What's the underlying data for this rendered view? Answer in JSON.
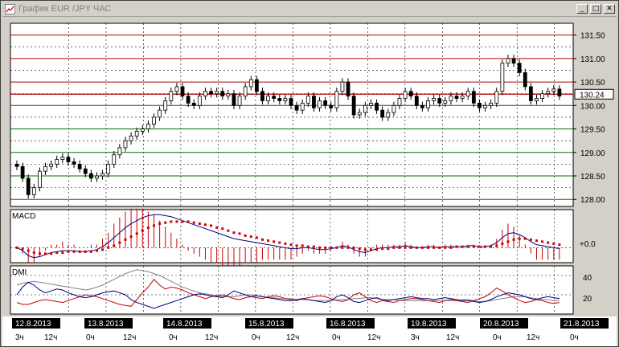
{
  "window": {
    "title": "График EUR /JPY  ЧАС",
    "btn_min": "_",
    "btn_max": "□",
    "btn_close": "✕"
  },
  "price_axis": {
    "ticks": [
      "131.50",
      "131.00",
      "130.50",
      "130.00",
      "129.50",
      "129.00",
      "128.50",
      "128.00"
    ],
    "current": "130.24"
  },
  "macd": {
    "label": "MACD",
    "zero_label": "+0.0"
  },
  "dmi": {
    "label": "DMI",
    "ticks": [
      "40",
      "20"
    ]
  },
  "time_axis": {
    "dates": [
      "12.8.2013",
      "13.8.2013",
      "14.8.2013",
      "15.8.2013",
      "16.8.2013",
      "19.8.2013",
      "20.8.2013",
      "21.8.2013"
    ],
    "hours": [
      {
        "text": "3ч"
      },
      {
        "text": "12ч"
      },
      {
        "text": "0ч"
      },
      {
        "text": "12ч"
      },
      {
        "text": "0ч"
      },
      {
        "text": "12ч"
      },
      {
        "text": "0ч"
      },
      {
        "text": "12ч"
      },
      {
        "text": "0ч"
      },
      {
        "text": "12ч"
      },
      {
        "text": "3ч"
      },
      {
        "text": "12ч"
      },
      {
        "text": "0ч"
      },
      {
        "text": "12ч"
      },
      {
        "text": "0ч"
      }
    ]
  },
  "colors": {
    "grid_red": "#b00000",
    "grid_green": "#007000",
    "candle": "#000000",
    "macd_line": "#000080",
    "signal_line": "#cc0000",
    "dmi_plus": "#000080",
    "dmi_minus": "#cc0000",
    "adx": "#808080"
  },
  "chart_data": {
    "type": "candlestick",
    "title": "График EUR /JPY  ЧАС",
    "ylim": [
      127.85,
      131.75
    ],
    "current_price": 130.24,
    "close": [
      128.7,
      128.45,
      128.1,
      128.25,
      128.6,
      128.7,
      128.75,
      128.85,
      128.9,
      128.8,
      128.75,
      128.65,
      128.55,
      128.45,
      128.5,
      128.55,
      128.75,
      128.95,
      129.1,
      129.25,
      129.35,
      129.45,
      129.5,
      129.6,
      129.75,
      129.9,
      130.1,
      130.3,
      130.4,
      130.2,
      130.05,
      130.0,
      130.2,
      130.3,
      130.25,
      130.3,
      130.2,
      130.25,
      130.0,
      130.2,
      130.4,
      130.55,
      130.3,
      130.1,
      130.2,
      130.15,
      130.1,
      130.15,
      130.0,
      129.9,
      130.05,
      130.2,
      129.95,
      130.1,
      130.0,
      129.95,
      130.3,
      130.5,
      130.2,
      129.8,
      129.85,
      130.0,
      130.05,
      129.9,
      129.75,
      129.85,
      130.0,
      130.15,
      130.3,
      130.2,
      130.0,
      129.95,
      130.1,
      130.15,
      130.05,
      130.1,
      130.2,
      130.15,
      130.2,
      130.3,
      130.05,
      129.95,
      130.0,
      130.05,
      130.3,
      130.9,
      131.0,
      130.9,
      130.7,
      130.4,
      130.1,
      130.15,
      130.25,
      130.3,
      130.35,
      130.2
    ],
    "macd": [
      0.0,
      -0.03,
      -0.08,
      -0.1,
      -0.09,
      -0.07,
      -0.05,
      -0.04,
      -0.03,
      -0.03,
      -0.03,
      -0.04,
      -0.04,
      -0.03,
      -0.02,
      0.01,
      0.05,
      0.1,
      0.15,
      0.2,
      0.24,
      0.27,
      0.3,
      0.32,
      0.33,
      0.33,
      0.32,
      0.31,
      0.29,
      0.27,
      0.25,
      0.23,
      0.21,
      0.19,
      0.17,
      0.15,
      0.13,
      0.11,
      0.09,
      0.08,
      0.07,
      0.06,
      0.05,
      0.04,
      0.03,
      0.02,
      0.01,
      0.0,
      -0.01,
      -0.01,
      0.0,
      0.0,
      -0.01,
      -0.02,
      -0.02,
      -0.01,
      0.0,
      0.02,
      0.01,
      -0.02,
      -0.04,
      -0.05,
      -0.03,
      -0.01,
      0.0,
      0.0,
      0.01,
      0.01,
      0.02,
      0.01,
      0.0,
      0.0,
      0.01,
      0.01,
      0.0,
      0.01,
      0.01,
      0.01,
      0.01,
      0.02,
      0.02,
      0.01,
      0.01,
      0.02,
      0.05,
      0.1,
      0.14,
      0.15,
      0.13,
      0.1,
      0.06,
      0.03,
      0.02,
      0.01,
      0.0,
      -0.01
    ],
    "signal": [
      0.0,
      -0.01,
      -0.03,
      -0.05,
      -0.06,
      -0.06,
      -0.06,
      -0.05,
      -0.05,
      -0.04,
      -0.04,
      -0.04,
      -0.04,
      -0.04,
      -0.03,
      -0.02,
      0.0,
      0.02,
      0.05,
      0.08,
      0.11,
      0.14,
      0.17,
      0.2,
      0.22,
      0.24,
      0.25,
      0.26,
      0.26,
      0.26,
      0.26,
      0.25,
      0.24,
      0.23,
      0.22,
      0.2,
      0.19,
      0.17,
      0.15,
      0.14,
      0.12,
      0.11,
      0.1,
      0.08,
      0.07,
      0.06,
      0.05,
      0.04,
      0.03,
      0.02,
      0.02,
      0.01,
      0.01,
      0.0,
      0.0,
      0.0,
      0.0,
      0.0,
      0.0,
      0.0,
      -0.01,
      -0.02,
      -0.02,
      -0.02,
      -0.01,
      -0.01,
      0.0,
      0.0,
      0.0,
      0.0,
      0.0,
      0.0,
      0.0,
      0.0,
      0.0,
      0.0,
      0.0,
      0.01,
      0.01,
      0.01,
      0.01,
      0.01,
      0.01,
      0.01,
      0.02,
      0.04,
      0.06,
      0.08,
      0.09,
      0.09,
      0.08,
      0.07,
      0.06,
      0.05,
      0.04,
      0.03
    ],
    "dmi_plus": [
      20,
      28,
      33,
      30,
      25,
      22,
      24,
      26,
      25,
      22,
      20,
      18,
      17,
      18,
      20,
      22,
      23,
      24,
      22,
      20,
      15,
      12,
      10,
      8,
      6,
      8,
      10,
      12,
      14,
      16,
      18,
      20,
      21,
      20,
      19,
      18,
      17,
      20,
      24,
      22,
      20,
      18,
      19,
      18,
      17,
      16,
      15,
      14,
      14,
      15,
      16,
      15,
      14,
      13,
      12,
      14,
      18,
      20,
      17,
      13,
      12,
      14,
      16,
      17,
      15,
      14,
      15,
      16,
      17,
      18,
      17,
      16,
      16,
      15,
      16,
      17,
      16,
      15,
      14,
      14,
      13,
      12,
      13,
      15,
      18,
      20,
      22,
      21,
      20,
      18,
      16,
      15,
      17,
      18,
      17,
      16
    ],
    "dmi_minus": [
      12,
      10,
      10,
      12,
      14,
      15,
      14,
      13,
      12,
      14,
      16,
      18,
      20,
      19,
      18,
      16,
      14,
      12,
      10,
      9,
      8,
      15,
      22,
      28,
      36,
      30,
      26,
      28,
      27,
      25,
      22,
      20,
      18,
      16,
      18,
      19,
      20,
      18,
      16,
      15,
      17,
      18,
      17,
      16,
      18,
      19,
      18,
      16,
      15,
      14,
      16,
      17,
      18,
      19,
      18,
      16,
      14,
      13,
      15,
      20,
      22,
      18,
      14,
      12,
      14,
      13,
      12,
      14,
      15,
      16,
      16,
      15,
      14,
      13,
      12,
      14,
      15,
      14,
      13,
      12,
      14,
      16,
      18,
      22,
      27,
      24,
      20,
      17,
      14,
      12,
      13,
      15,
      14,
      12,
      11,
      12
    ],
    "adx": [
      30,
      32,
      33,
      34,
      33,
      32,
      31,
      30,
      29,
      28,
      27,
      26,
      25,
      26,
      28,
      30,
      33,
      36,
      39,
      42,
      44,
      46,
      45,
      44,
      42,
      40,
      37,
      34,
      31,
      28,
      26,
      24,
      22,
      21,
      20,
      19,
      18,
      18,
      18,
      19,
      20,
      20,
      19,
      18,
      17,
      17,
      16,
      16,
      16,
      15,
      15,
      15,
      14,
      14,
      14,
      14,
      15,
      15,
      15,
      16,
      16,
      17,
      17,
      16,
      15,
      15,
      15,
      14,
      14,
      14,
      14,
      14,
      14,
      14,
      14,
      14,
      14,
      14,
      15,
      15,
      14,
      13,
      13,
      14,
      15,
      16,
      17,
      18,
      18,
      18,
      17,
      16,
      15,
      15,
      14,
      14
    ]
  }
}
